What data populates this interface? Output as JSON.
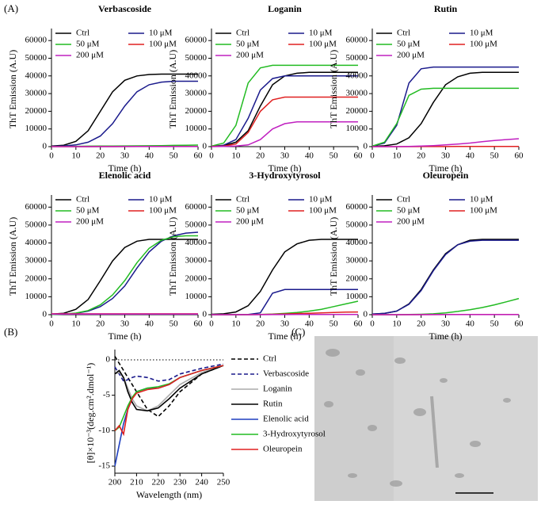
{
  "panel_labels": [
    "(A)",
    "(B)",
    "(C)"
  ],
  "chart_data": [
    {
      "type": "line",
      "title": "Verbascoside",
      "x_label": "Time (h)",
      "y_label": "ThT Emission (A.U)",
      "legend": "top",
      "x": [
        0,
        5,
        10,
        15,
        20,
        25,
        30,
        35,
        40,
        45,
        50,
        55,
        60
      ],
      "xlim": [
        0,
        60
      ],
      "xticks": [
        0,
        10,
        20,
        30,
        40,
        50,
        60
      ],
      "ylim": [
        0,
        65000
      ],
      "yticks": [
        0,
        10000,
        20000,
        30000,
        40000,
        50000,
        60000
      ],
      "series": [
        {
          "name": "Ctrl",
          "color": "#000000",
          "values": [
            300,
            800,
            3000,
            9000,
            20000,
            31000,
            37500,
            40000,
            40800,
            41000,
            41000,
            41000,
            41000
          ]
        },
        {
          "name": "10 μM",
          "color": "#1a1a8c",
          "values": [
            200,
            400,
            1000,
            2500,
            6000,
            13000,
            23000,
            31000,
            35000,
            36500,
            37000,
            37000,
            37000
          ]
        },
        {
          "name": "50 μM",
          "color": "#22bb22",
          "values": [
            100,
            150,
            200,
            250,
            300,
            350,
            400,
            450,
            500,
            600,
            700,
            800,
            900
          ]
        },
        {
          "name": "100 μM",
          "color": "#e02020",
          "values": [
            0,
            0,
            0,
            0,
            50,
            50,
            50,
            100,
            100,
            100,
            100,
            100,
            100
          ]
        },
        {
          "name": "200 μM",
          "color": "#c020c0",
          "values": [
            0,
            0,
            0,
            0,
            0,
            0,
            50,
            50,
            50,
            50,
            50,
            50,
            50
          ]
        }
      ]
    },
    {
      "type": "line",
      "title": "Loganin",
      "x_label": "Time (h)",
      "y_label": "ThT Emission (A.U)",
      "legend": "top",
      "x": [
        0,
        5,
        10,
        15,
        20,
        25,
        30,
        35,
        40,
        45,
        50,
        55,
        60
      ],
      "xlim": [
        0,
        60
      ],
      "xticks": [
        0,
        10,
        20,
        30,
        40,
        50,
        60
      ],
      "ylim": [
        0,
        65000
      ],
      "yticks": [
        0,
        10000,
        20000,
        30000,
        40000,
        50000,
        60000
      ],
      "series": [
        {
          "name": "Ctrl",
          "color": "#000000",
          "values": [
            200,
            600,
            2500,
            9000,
            23000,
            35000,
            40000,
            41500,
            42000,
            42000,
            42000,
            42000,
            42000
          ]
        },
        {
          "name": "10 μM",
          "color": "#1a1a8c",
          "values": [
            200,
            800,
            4000,
            16000,
            32000,
            38500,
            40000,
            40000,
            40000,
            40000,
            40000,
            40000,
            40000
          ]
        },
        {
          "name": "50 μM",
          "color": "#22bb22",
          "values": [
            300,
            2000,
            12000,
            36000,
            44500,
            46000,
            46000,
            46000,
            46000,
            46000,
            46000,
            46000,
            46000
          ]
        },
        {
          "name": "100 μM",
          "color": "#e02020",
          "values": [
            100,
            300,
            1500,
            8000,
            20000,
            26500,
            28000,
            28000,
            28000,
            28000,
            28000,
            28000,
            28000
          ]
        },
        {
          "name": "200 μM",
          "color": "#c020c0",
          "values": [
            0,
            100,
            300,
            1000,
            4000,
            10000,
            13000,
            14000,
            14000,
            14000,
            14000,
            14000,
            14000
          ]
        }
      ]
    },
    {
      "type": "line",
      "title": "Rutin",
      "x_label": "Time (h)",
      "y_label": "ThT Emission (A.U)",
      "legend": "top",
      "x": [
        0,
        5,
        10,
        15,
        20,
        25,
        30,
        35,
        40,
        45,
        50,
        55,
        60
      ],
      "xlim": [
        0,
        60
      ],
      "xticks": [
        0,
        10,
        20,
        30,
        40,
        50,
        60
      ],
      "ylim": [
        0,
        65000
      ],
      "yticks": [
        0,
        10000,
        20000,
        30000,
        40000,
        50000,
        60000
      ],
      "series": [
        {
          "name": "Ctrl",
          "color": "#000000",
          "values": [
            200,
            500,
            1500,
            5000,
            13000,
            25000,
            35000,
            39500,
            41500,
            42000,
            42000,
            42000,
            42000
          ]
        },
        {
          "name": "10 μM",
          "color": "#1a1a8c",
          "values": [
            300,
            2000,
            12000,
            36000,
            44000,
            45000,
            45000,
            45000,
            45000,
            45000,
            45000,
            45000,
            45000
          ]
        },
        {
          "name": "50 μM",
          "color": "#22bb22",
          "values": [
            300,
            2500,
            13000,
            29000,
            32500,
            33000,
            33000,
            33000,
            33000,
            33000,
            33000,
            33000,
            33000
          ]
        },
        {
          "name": "100 μM",
          "color": "#e02020",
          "values": [
            0,
            0,
            0,
            0,
            50,
            50,
            50,
            100,
            100,
            100,
            100,
            100,
            100
          ]
        },
        {
          "name": "200 μM",
          "color": "#c020c0",
          "values": [
            0,
            0,
            0,
            100,
            300,
            600,
            1000,
            1500,
            2000,
            2800,
            3500,
            4000,
            4500
          ]
        }
      ]
    },
    {
      "type": "line",
      "title": "Elenolic acid",
      "x_label": "Time (h)",
      "y_label": "ThT Emission (A.U)",
      "legend": "top",
      "x": [
        0,
        5,
        10,
        15,
        20,
        25,
        30,
        35,
        40,
        45,
        50,
        55,
        60
      ],
      "xlim": [
        0,
        60
      ],
      "xticks": [
        0,
        10,
        20,
        30,
        40,
        50,
        60
      ],
      "ylim": [
        0,
        65000
      ],
      "yticks": [
        0,
        10000,
        20000,
        30000,
        40000,
        50000,
        60000
      ],
      "series": [
        {
          "name": "Ctrl",
          "color": "#000000",
          "values": [
            300,
            800,
            3000,
            8500,
            19000,
            30000,
            37500,
            41000,
            42000,
            42000,
            42000,
            42000,
            42000
          ]
        },
        {
          "name": "10 μM",
          "color": "#1a1a8c",
          "values": [
            100,
            300,
            800,
            2000,
            4500,
            9000,
            16000,
            26000,
            35000,
            41000,
            44000,
            45500,
            46000
          ]
        },
        {
          "name": "50 μM",
          "color": "#22bb22",
          "values": [
            100,
            300,
            900,
            2300,
            5500,
            11000,
            19000,
            29000,
            37000,
            41500,
            43500,
            44000,
            44000
          ]
        },
        {
          "name": "100 μM",
          "color": "#e02020",
          "values": [
            500,
            500,
            500,
            500,
            500,
            500,
            500,
            500,
            500,
            500,
            500,
            500,
            500
          ]
        },
        {
          "name": "200 μM",
          "color": "#c020c0",
          "values": [
            300,
            300,
            300,
            300,
            300,
            300,
            300,
            300,
            300,
            300,
            300,
            300,
            300
          ]
        }
      ]
    },
    {
      "type": "line",
      "title": "3-Hydroxytyrosol",
      "x_label": "Time (h)",
      "y_label": "ThT Emission (A.U)",
      "legend": "top",
      "x": [
        0,
        5,
        10,
        15,
        20,
        25,
        30,
        35,
        40,
        45,
        50,
        55,
        60
      ],
      "xlim": [
        0,
        60
      ],
      "xticks": [
        0,
        10,
        20,
        30,
        40,
        50,
        60
      ],
      "ylim": [
        0,
        65000
      ],
      "yticks": [
        0,
        10000,
        20000,
        30000,
        40000,
        50000,
        60000
      ],
      "series": [
        {
          "name": "Ctrl",
          "color": "#000000",
          "values": [
            200,
            500,
            1500,
            5000,
            13000,
            25000,
            35000,
            39500,
            41500,
            42000,
            42000,
            42000,
            42000
          ]
        },
        {
          "name": "10 μM",
          "color": "#1a1a8c",
          "values": [
            0,
            0,
            0,
            100,
            1000,
            12000,
            14000,
            14000,
            14000,
            14000,
            14000,
            14000,
            14000
          ]
        },
        {
          "name": "50 μM",
          "color": "#22bb22",
          "values": [
            0,
            0,
            0,
            0,
            100,
            300,
            700,
            1200,
            2000,
            3000,
            4500,
            6000,
            7500
          ]
        },
        {
          "name": "100 μM",
          "color": "#e02020",
          "values": [
            0,
            0,
            0,
            0,
            100,
            200,
            400,
            600,
            800,
            1000,
            1200,
            1400,
            1500
          ]
        },
        {
          "name": "200 μM",
          "color": "#c020c0",
          "values": [
            0,
            0,
            0,
            0,
            0,
            50,
            50,
            100,
            100,
            100,
            100,
            100,
            100
          ]
        }
      ]
    },
    {
      "type": "line",
      "title": "Oleuropein",
      "x_label": "Time (h)",
      "y_label": "ThT Emission (A.U)",
      "legend": "top",
      "x": [
        0,
        5,
        10,
        15,
        20,
        25,
        30,
        35,
        40,
        45,
        50,
        55,
        60
      ],
      "xlim": [
        0,
        60
      ],
      "xticks": [
        0,
        10,
        20,
        30,
        40,
        50,
        60
      ],
      "ylim": [
        0,
        65000
      ],
      "yticks": [
        0,
        10000,
        20000,
        30000,
        40000,
        50000,
        60000
      ],
      "series": [
        {
          "name": "Ctrl",
          "color": "#000000",
          "values": [
            300,
            700,
            2000,
            6000,
            14000,
            25000,
            34000,
            39000,
            41500,
            42000,
            42000,
            42000,
            42000
          ]
        },
        {
          "name": "10 μM",
          "color": "#1a1a8c",
          "values": [
            300,
            700,
            2000,
            5800,
            13500,
            24500,
            33500,
            39000,
            41000,
            41500,
            41500,
            41500,
            41500
          ]
        },
        {
          "name": "50 μM",
          "color": "#22bb22",
          "values": [
            0,
            0,
            0,
            100,
            200,
            500,
            1000,
            1800,
            2800,
            4000,
            5500,
            7200,
            9000
          ]
        },
        {
          "name": "100 μM",
          "color": "#e02020",
          "values": [
            0,
            0,
            0,
            0,
            50,
            50,
            100,
            100,
            100,
            100,
            100,
            100,
            100
          ]
        },
        {
          "name": "200 μM",
          "color": "#c020c0",
          "values": [
            0,
            0,
            0,
            0,
            0,
            50,
            50,
            50,
            50,
            50,
            50,
            50,
            50
          ]
        }
      ]
    },
    {
      "type": "line",
      "x_label": "Wavelength (nm)",
      "y_label": "[θ]×10⁻³(deg.cm².dmol⁻¹)",
      "legend": "right",
      "zero_line": true,
      "x": [
        200,
        202,
        204,
        206,
        208,
        210,
        215,
        220,
        225,
        230,
        240,
        250
      ],
      "xlim": [
        200,
        250
      ],
      "xticks": [
        200,
        210,
        220,
        230,
        240,
        250
      ],
      "ylim": [
        -16,
        1
      ],
      "yticks": [
        -15,
        -10,
        -5,
        0
      ],
      "series": [
        {
          "name": "Ctrl",
          "color": "#000000",
          "dash": true,
          "values": [
            0.5,
            -0.5,
            -1.5,
            -2.5,
            -3.5,
            -4.5,
            -7,
            -8,
            -6.5,
            -4.5,
            -2,
            -0.8
          ]
        },
        {
          "name": "Verbascoside",
          "color": "#1a1a8c",
          "dash": true,
          "values": [
            -1,
            -2,
            -3,
            -2.8,
            -2.5,
            -2.3,
            -2.5,
            -3,
            -2.8,
            -2,
            -1.2,
            -0.6
          ]
        },
        {
          "name": "Loganin",
          "color": "#aaaaaa",
          "values": [
            -2,
            -1.8,
            -2.5,
            -4,
            -5.5,
            -6.5,
            -7.2,
            -6.5,
            -5,
            -3.5,
            -1.8,
            -0.8
          ]
        },
        {
          "name": "Rutin",
          "color": "#000000",
          "values": [
            -2,
            -1.5,
            -2.5,
            -4.5,
            -6,
            -7,
            -7.2,
            -6.8,
            -5.5,
            -4,
            -2,
            -0.8
          ]
        },
        {
          "name": "Elenolic acid",
          "color": "#1f3fbf",
          "values": [
            -15,
            -12,
            -9,
            -7,
            -5.5,
            -4.5,
            -4,
            -4,
            -3.5,
            -2.5,
            -1.5,
            -0.8
          ]
        },
        {
          "name": "3-Hydroxytyrosol",
          "color": "#22bb22",
          "values": [
            -10,
            -9.5,
            -8,
            -6.5,
            -5.3,
            -4.5,
            -4,
            -3.8,
            -3.4,
            -2.5,
            -1.5,
            -0.8
          ]
        },
        {
          "name": "Oleuropein",
          "color": "#e02020",
          "values": [
            -10,
            -9.3,
            -10.5,
            -7,
            -5.5,
            -4.7,
            -4.2,
            -4,
            -3.5,
            -2.5,
            -1.5,
            -0.8
          ]
        }
      ]
    }
  ]
}
